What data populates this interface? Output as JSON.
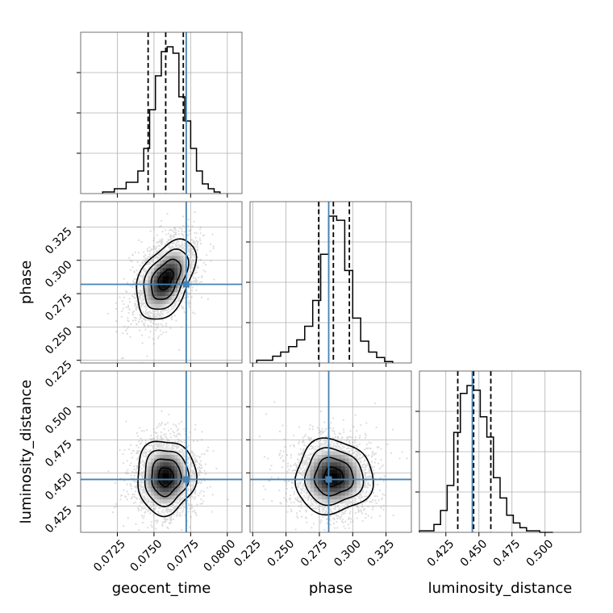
{
  "chart_data": {
    "type": "corner",
    "parameters": [
      "geocent_time",
      "phase",
      "luminosity_distance"
    ],
    "axis_labels": [
      "geocent_time",
      "phase",
      "luminosity_distance"
    ],
    "ranges": [
      [
        0.07,
        0.081
      ],
      [
        0.223,
        0.344
      ],
      [
        0.405,
        0.527
      ]
    ],
    "ticks": [
      {
        "values": [
          0.0725,
          0.075,
          0.0775,
          0.08
        ],
        "labels": [
          "0.0725",
          "0.0750",
          "0.0775",
          "0.0800"
        ]
      },
      {
        "values": [
          0.225,
          0.25,
          0.275,
          0.3,
          0.325
        ],
        "labels": [
          "0.225",
          "0.250",
          "0.275",
          "0.300",
          "0.325"
        ]
      },
      {
        "values": [
          0.425,
          0.45,
          0.475,
          0.5
        ],
        "labels": [
          "0.425",
          "0.450",
          "0.475",
          "0.500"
        ]
      }
    ],
    "truths": [
      0.0772,
      0.282,
      0.445
    ],
    "truth_color": "#4682b4",
    "quantiles": [
      [
        0.0746,
        0.0758,
        0.077
      ],
      [
        0.2745,
        0.2855,
        0.2975
      ],
      [
        0.434,
        0.446,
        0.459
      ]
    ],
    "histograms": [
      {
        "bin_edges": [
          0.0715,
          0.0723,
          0.0731,
          0.0739,
          0.0743,
          0.0747,
          0.0751,
          0.0755,
          0.0759,
          0.0763,
          0.0767,
          0.0771,
          0.0775,
          0.0779,
          0.0783,
          0.0787,
          0.0791,
          0.0795
        ],
        "counts": [
          1,
          3,
          7,
          14,
          28,
          52,
          73,
          88,
          91,
          87,
          60,
          45,
          28,
          14,
          6,
          3,
          1
        ]
      },
      {
        "bin_edges": [
          0.228,
          0.24,
          0.246,
          0.252,
          0.258,
          0.264,
          0.27,
          0.276,
          0.282,
          0.288,
          0.294,
          0.3,
          0.306,
          0.312,
          0.318,
          0.324,
          0.33
        ],
        "counts": [
          2,
          5,
          8,
          12,
          17,
          27,
          46,
          80,
          108,
          105,
          68,
          33,
          16,
          8,
          4,
          1
        ]
      },
      {
        "bin_edges": [
          0.405,
          0.416,
          0.421,
          0.426,
          0.431,
          0.436,
          0.441,
          0.446,
          0.451,
          0.456,
          0.461,
          0.466,
          0.471,
          0.476,
          0.481,
          0.486,
          0.496,
          0.506
        ],
        "counts": [
          1,
          5,
          14,
          30,
          64,
          89,
          94,
          91,
          74,
          61,
          35,
          22,
          11,
          6,
          3,
          1,
          0
        ]
      }
    ],
    "joint_2d": [
      {
        "x_param": "geocent_time",
        "y_param": "phase",
        "mean": [
          0.0758,
          0.2855
        ],
        "sd": [
          0.001,
          0.015
        ],
        "correlation": 0.45,
        "contour_levels": [
          0.5,
          1.0,
          1.5,
          2.0
        ]
      },
      {
        "x_param": "geocent_time",
        "y_param": "luminosity_distance",
        "mean": [
          0.0758,
          0.447
        ],
        "sd": [
          0.001,
          0.014
        ],
        "correlation": 0.02,
        "contour_levels": [
          0.5,
          1.0,
          1.5,
          2.0
        ]
      },
      {
        "x_param": "phase",
        "y_param": "luminosity_distance",
        "mean": [
          0.2855,
          0.447
        ],
        "sd": [
          0.0145,
          0.014
        ],
        "correlation": 0.0,
        "contour_levels": [
          0.5,
          1.0,
          1.5,
          2.0
        ]
      }
    ],
    "grid": true,
    "title": "",
    "legend": "none"
  }
}
